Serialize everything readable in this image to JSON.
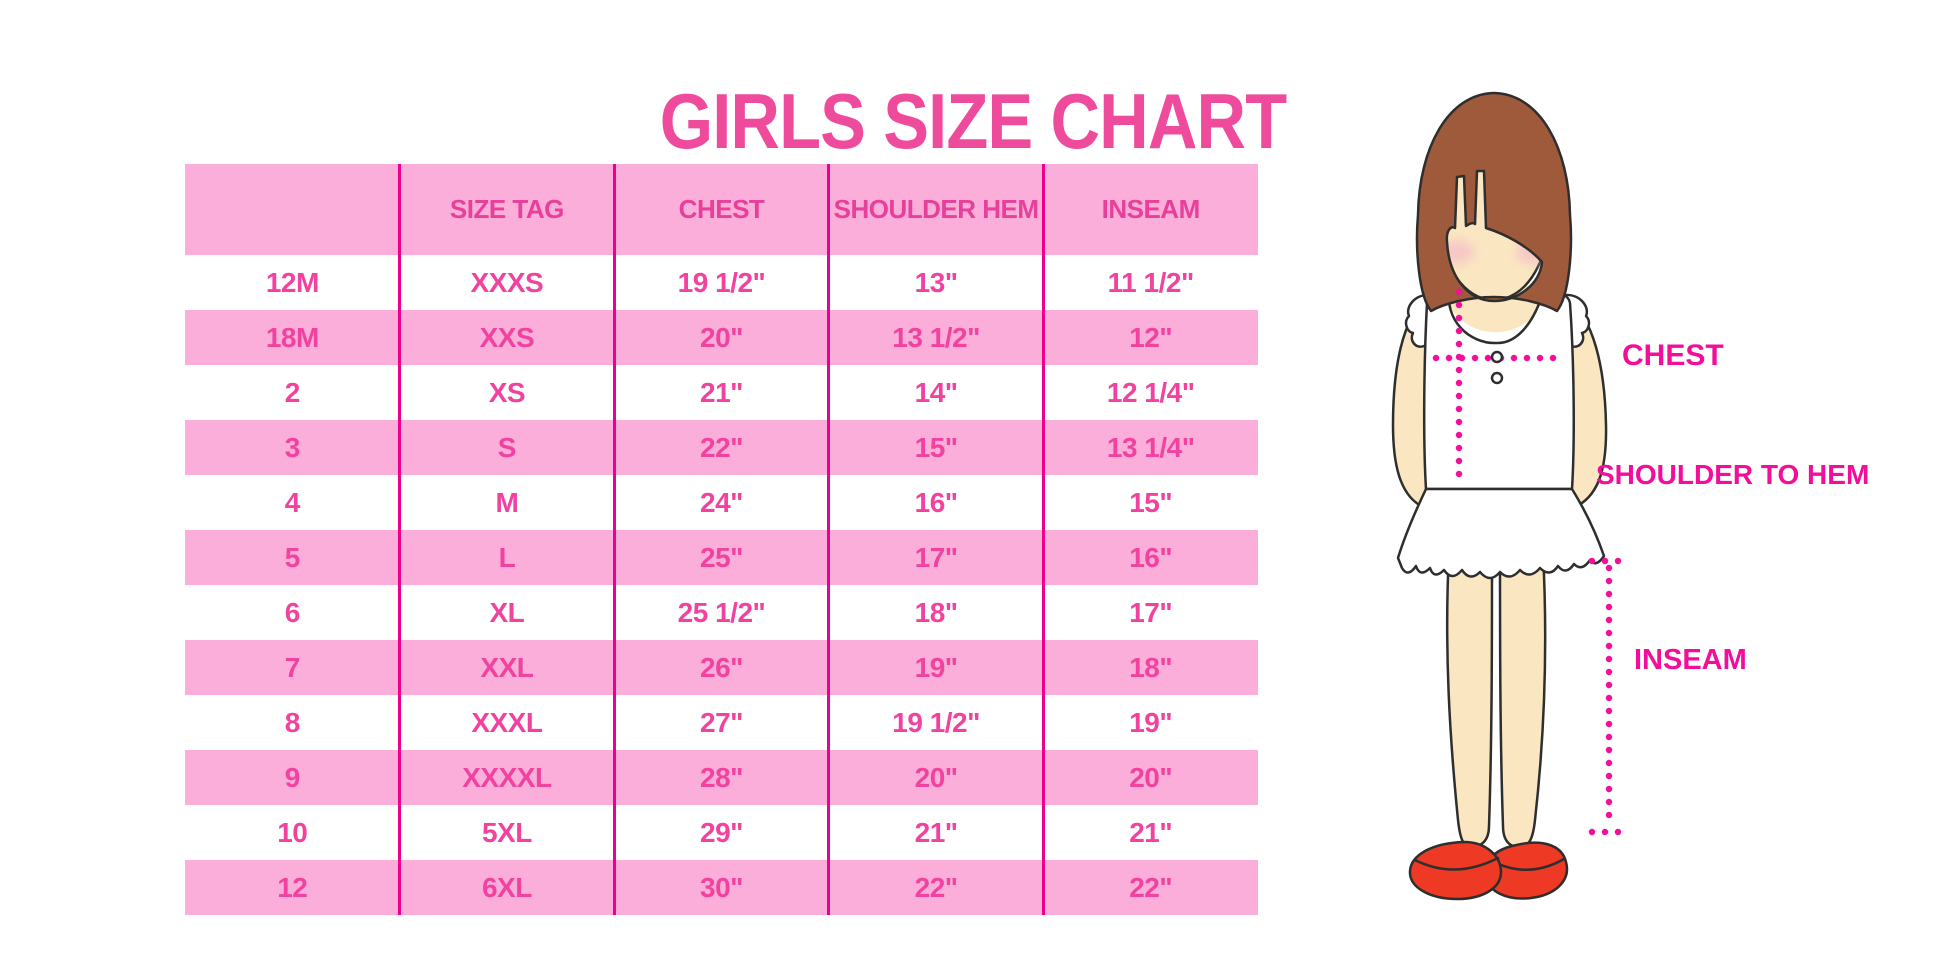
{
  "title": "GIRLS SIZE CHART",
  "colors": {
    "title_pink": "#ef4b9d",
    "band_pink": "#fbaed9",
    "divider_magenta": "#ec008c",
    "cell_text_pink": "#f2429f",
    "header_text_pink": "#e83f9a",
    "label_magenta": "#f20d9b",
    "dotted_line": "#f2109b",
    "hair_brown": "#9e5a3b",
    "skin": "#fae6c1",
    "blush": "#f5b8c9",
    "shoe_red": "#ee3a24"
  },
  "chart_data": {
    "type": "table",
    "title": "GIRLS SIZE CHART",
    "columns": [
      "",
      "SIZE TAG",
      "CHEST",
      "SHOULDER HEM",
      "INSEAM"
    ],
    "rows": [
      [
        "12M",
        "XXXS",
        "19 1/2\"",
        "13\"",
        "11 1/2\""
      ],
      [
        "18M",
        "XXS",
        "20\"",
        "13 1/2\"",
        "12\""
      ],
      [
        "2",
        "XS",
        "21\"",
        "14\"",
        "12 1/4\""
      ],
      [
        "3",
        "S",
        "22\"",
        "15\"",
        "13 1/4\""
      ],
      [
        "4",
        "M",
        "24\"",
        "16\"",
        "15\""
      ],
      [
        "5",
        "L",
        "25\"",
        "17\"",
        "16\""
      ],
      [
        "6",
        "XL",
        "25 1/2\"",
        "18\"",
        "17\""
      ],
      [
        "7",
        "XXL",
        "26\"",
        "19\"",
        "18\""
      ],
      [
        "8",
        "XXXL",
        "27\"",
        "19 1/2\"",
        "19\""
      ],
      [
        "9",
        "XXXXL",
        "28\"",
        "20\"",
        "20\""
      ],
      [
        "10",
        "5XL",
        "29\"",
        "21\"",
        "21\""
      ],
      [
        "12",
        "6XL",
        "30\"",
        "22\"",
        "22\""
      ]
    ],
    "zebra_striping": "white/pink alternating, header pink",
    "legend_position": "none",
    "grid": "vertical magenta dividers only"
  },
  "diagram": {
    "labels": {
      "chest": "CHEST",
      "shoulder_to_hem": "SHOULDER TO HEM",
      "inseam": "INSEAM"
    }
  }
}
